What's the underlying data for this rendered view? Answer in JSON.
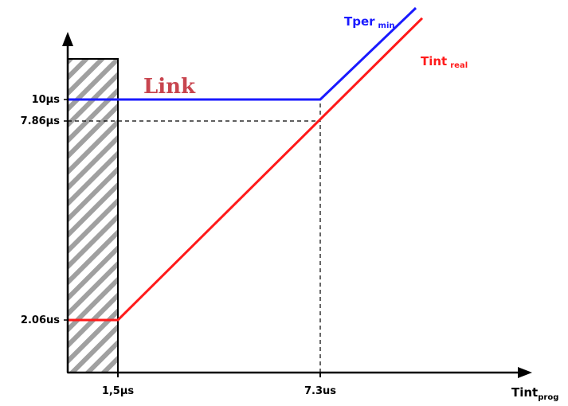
{
  "chart_data": {
    "type": "line",
    "title": "",
    "xlabel": "Tint",
    "xlabel_sub": "prog",
    "ylabel": "",
    "x_ticks": [
      {
        "value": 1.5,
        "label": "1,5µs"
      },
      {
        "value": 7.3,
        "label": "7.3us"
      }
    ],
    "y_ticks": [
      {
        "value": 10,
        "label": "10µs"
      },
      {
        "value": 7.86,
        "label": "7.86µs"
      },
      {
        "value": 2.06,
        "label": "2.06us"
      }
    ],
    "series": [
      {
        "name": "Tper",
        "name_sub": "min",
        "color": "#1a1aff",
        "points": [
          [
            0,
            10
          ],
          [
            7.3,
            10
          ],
          [
            10.3,
            14.5
          ]
        ]
      },
      {
        "name": "Tint",
        "name_sub": "real",
        "color": "#ff1a1a",
        "points": [
          [
            0,
            2.06
          ],
          [
            1.5,
            2.06
          ],
          [
            10.5,
            14
          ]
        ]
      }
    ],
    "forbidden_region": {
      "x_start": 0,
      "x_end": 1.5,
      "pattern": "diagonal-hatch"
    },
    "guide_lines": [
      {
        "from": [
          0,
          7.86
        ],
        "to": [
          7.3,
          7.86
        ]
      },
      {
        "from": [
          7.3,
          0
        ],
        "to": [
          7.3,
          10
        ]
      }
    ],
    "watermark_text": "Link",
    "grid": false
  }
}
